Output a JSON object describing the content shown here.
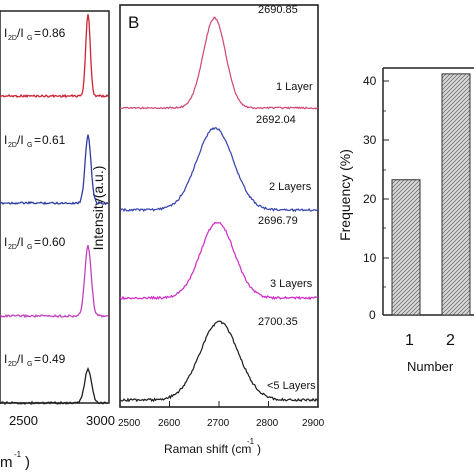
{
  "panels": {
    "left": {
      "ratios": [
        {
          "ratio": "0.86",
          "color": "#cc2233"
        },
        {
          "ratio": "0.61",
          "color": "#2d3b9f"
        },
        {
          "ratio": "0.60",
          "color": "#c43fc0"
        },
        {
          "ratio": "0.49",
          "color": "#202020"
        }
      ],
      "x_ticks": [
        "2500",
        "3000"
      ],
      "x_label_fragment": "m",
      "x_label_superscript": "-1",
      "x_label_tail": ")"
    },
    "middle": {
      "panel_letter": "B",
      "layers": [
        {
          "label": "1 Layer",
          "peak": "2690.85",
          "peak_value": 2690.85,
          "width": 32,
          "color": "#d24a78"
        },
        {
          "label": "2 Layers",
          "peak": "2692.04",
          "peak_value": 2692.04,
          "width": 52,
          "color": "#3946b0"
        },
        {
          "label": "3 Layers",
          "peak": "2696.79",
          "peak_value": 2696.79,
          "width": 48,
          "color": "#d02ec9"
        },
        {
          "label": "<5 Layers",
          "peak": "2700.35",
          "peak_value": 2700.35,
          "width": 55,
          "color": "#222222"
        }
      ],
      "x_ticks": [
        "2500",
        "2600",
        "2700",
        "2800",
        "2900"
      ],
      "x_range": [
        2500,
        2900
      ],
      "x_label": "Raman shift (cm",
      "x_label_superscript": "-1",
      "x_label_tail": ")",
      "y_label": "Intensity(a.u.)"
    },
    "right": {
      "bar_chart": {
        "type": "bar",
        "categories": [
          "1",
          "2"
        ],
        "values": [
          23,
          41
        ],
        "ylabel": "Frequency (%)",
        "xlabel_fragment": "Number",
        "yticks": [
          "0",
          "10",
          "20",
          "30",
          "40"
        ],
        "ylim": [
          0,
          42
        ],
        "fill": "#d7d7d7"
      }
    }
  },
  "chart_data": [
    {
      "type": "line",
      "x_ticks": [
        "2500",
        "3000"
      ],
      "series": [
        {
          "annotation": "I2D/IG=0.86"
        },
        {
          "annotation": "I2D/IG=0.61"
        },
        {
          "annotation": "I2D/IG=0.60"
        },
        {
          "annotation": "I2D/IG=0.49"
        }
      ]
    },
    {
      "type": "line",
      "title": "B",
      "xlabel": "Raman shift (cm-1)",
      "ylabel": "Intensity(a.u.)",
      "x_ticks": [
        "2500",
        "2600",
        "2700",
        "2800",
        "2900"
      ],
      "xlim": [
        2500,
        2900
      ],
      "series": [
        {
          "name": "1 Layer",
          "peak": 2690.85
        },
        {
          "name": "2 Layers",
          "peak": 2692.04
        },
        {
          "name": "3 Layers",
          "peak": 2696.79
        },
        {
          "name": "<5 Layers",
          "peak": 2700.35
        }
      ]
    },
    {
      "type": "bar",
      "categories": [
        "1",
        "2"
      ],
      "values": [
        23,
        41
      ],
      "ylabel": "Frequency (%)",
      "xlabel": "Number",
      "ylim": [
        0,
        42
      ]
    }
  ]
}
